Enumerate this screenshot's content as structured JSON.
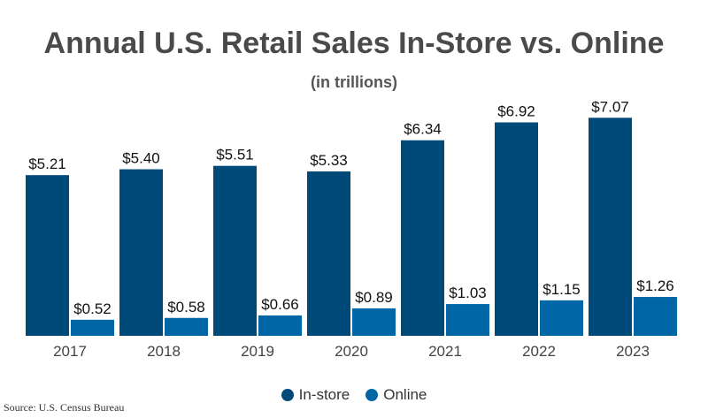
{
  "chart_data": {
    "type": "bar",
    "title": "Annual U.S. Retail Sales In-Store vs. Online",
    "subtitle": "(in trillions)",
    "categories": [
      "2017",
      "2018",
      "2019",
      "2020",
      "2021",
      "2022",
      "2023"
    ],
    "series": [
      {
        "name": "In-store",
        "color": "#004a7a",
        "values": [
          5.21,
          5.4,
          5.51,
          5.33,
          6.34,
          6.92,
          7.07
        ]
      },
      {
        "name": "Online",
        "color": "#0066a6",
        "values": [
          0.52,
          0.58,
          0.66,
          0.89,
          1.03,
          1.15,
          1.26
        ]
      }
    ],
    "value_prefix": "$",
    "legend": "bottom",
    "grid": false,
    "ylim": [
      0,
      7.5
    ]
  },
  "source": "Source: U.S. Census Bureau"
}
